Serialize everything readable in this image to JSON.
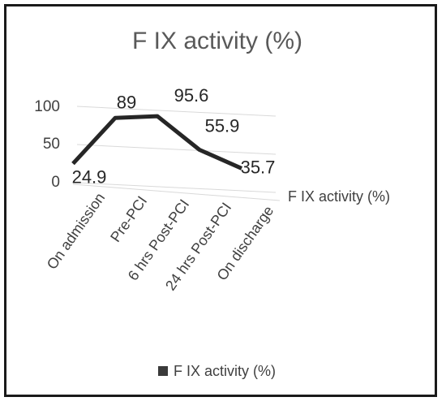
{
  "chart_data": {
    "type": "line",
    "title": "F IX activity (%)",
    "categories": [
      "On admission",
      "Pre-PCI",
      "6 hrs Post-PCI",
      "24 hrs Post-PCI",
      "On discharge"
    ],
    "series": [
      {
        "name": "F IX activity (%)",
        "values": [
          24.9,
          89,
          95.6,
          55.9,
          35.7
        ]
      }
    ],
    "y_ticks": [
      "0",
      "50",
      "100"
    ],
    "ylim": [
      0,
      100
    ],
    "depth_axis_label": "F IX activity (%)",
    "legend": {
      "position": "bottom",
      "label": "F IX activity (%)"
    },
    "grid": true,
    "line_color": "#262626"
  }
}
